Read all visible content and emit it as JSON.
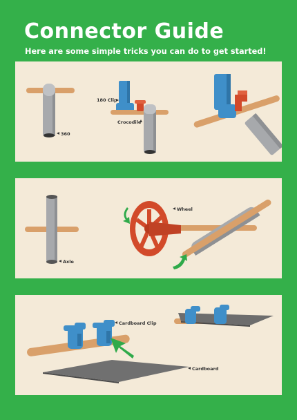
{
  "header": {
    "title": "Connector Guide",
    "subtitle": "Here are some simple tricks you can do to get started!"
  },
  "panel1": {
    "label_360": "360",
    "label_180clip": "180 Clip",
    "label_crocodile": "Crocodile"
  },
  "panel2": {
    "label_axle": "Axle",
    "label_wheel": "Wheel"
  },
  "panel3": {
    "label_cardboard_clip": "Cardboard Clip",
    "label_cardboard": "Cardboard"
  },
  "colors": {
    "background": "#34b04a",
    "panel": "#f4ead8",
    "dowel": "#d9a06a",
    "tube": "#a7a9ac",
    "clip_blue": "#3f8fc9",
    "crocodile_red": "#d24a2a",
    "arrow_green": "#2faa4a",
    "cardboard": "#707070"
  }
}
